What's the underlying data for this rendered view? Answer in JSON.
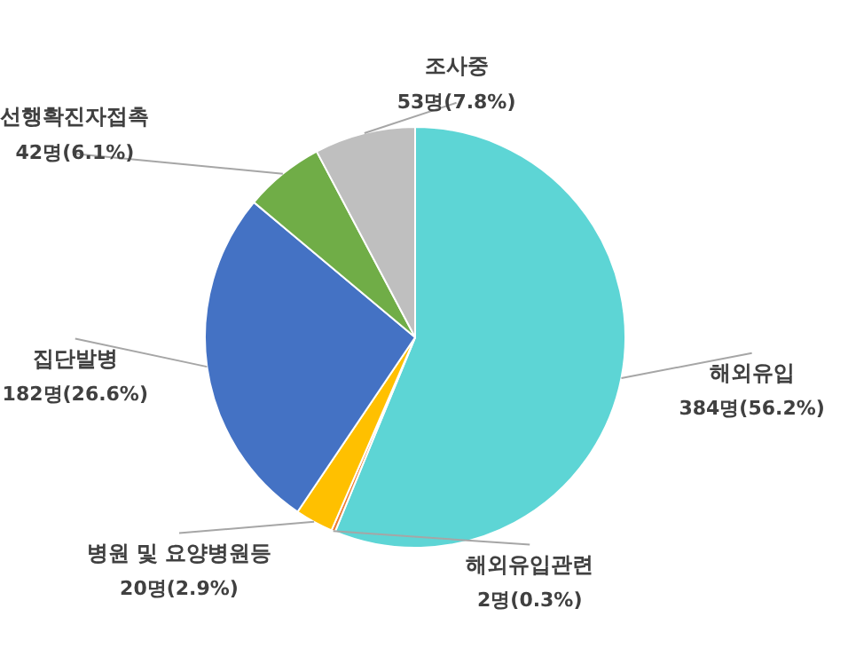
{
  "chart_data": {
    "type": "pie",
    "categories": [
      "해외유입",
      "해외유입관련",
      "병원 및 요양병원등",
      "집단발병",
      "선행확진자접촉",
      "조사중"
    ],
    "values": [
      384,
      2,
      20,
      182,
      42,
      53
    ],
    "colors": [
      "#5dd5d5",
      "#ed7d31",
      "#ffc000",
      "#4472c4",
      "#70ad47",
      "#bfbfbf"
    ],
    "value_labels": [
      "384명(56.2%)",
      "2명(0.3%)",
      "20명(2.9%)",
      "182명(26.6%)",
      "42명(6.1%)",
      "53명(7.8%)"
    ],
    "legend": false
  }
}
